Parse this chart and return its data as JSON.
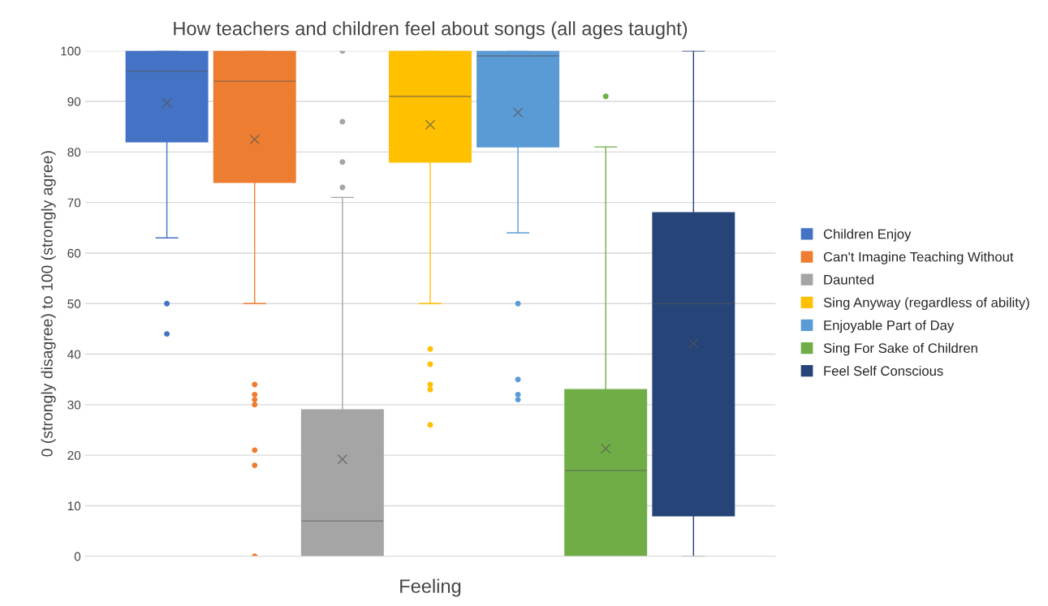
{
  "chart_data": {
    "type": "box",
    "title": "How teachers and children feel about songs (all ages taught)",
    "xlabel": "Feeling",
    "ylabel": "0 (strongly disagree) to 100 (strongly agree)",
    "categories": [
      null
    ],
    "series": [
      {
        "name": "Children Enjoy",
        "color": "#4472c4",
        "boxes": [
          {
            "low": 63,
            "q1": 82,
            "median": 96,
            "q3": 100,
            "high": 100,
            "mean": 89.7,
            "outliers": [
              50,
              44
            ]
          }
        ]
      },
      {
        "name": "Can't Imagine Teaching Without",
        "color": "#ed7d31",
        "boxes": [
          {
            "low": 50,
            "q1": 74,
            "median": 94,
            "q3": 100,
            "high": 100,
            "mean": 82.5,
            "outliers": [
              34,
              32,
              31,
              30,
              21,
              18,
              0
            ]
          }
        ]
      },
      {
        "name": "Daunted",
        "color": "#a5a5a5",
        "boxes": [
          {
            "low": 0,
            "q1": 0,
            "median": 7,
            "q3": 29,
            "high": 71,
            "mean": 19.2,
            "outliers": [
              73,
              78,
              86,
              100
            ]
          }
        ]
      },
      {
        "name": "Sing Anyway (regardless of ability)",
        "color": "#ffc000",
        "boxes": [
          {
            "low": 50,
            "q1": 78,
            "median": 91,
            "q3": 100,
            "high": 100,
            "mean": 85.4,
            "outliers": [
              41,
              38,
              34,
              33,
              26
            ]
          }
        ]
      },
      {
        "name": "Enjoyable Part of Day",
        "color": "#5b9bd5",
        "boxes": [
          {
            "low": 64,
            "q1": 81,
            "median": 99,
            "q3": 100,
            "high": 100,
            "mean": 87.8,
            "outliers": [
              50,
              35,
              32,
              31
            ]
          }
        ]
      },
      {
        "name": "Sing For Sake of Children",
        "color": "#70ad47",
        "boxes": [
          {
            "low": 0,
            "q1": 0,
            "median": 17,
            "q3": 33,
            "high": 81,
            "mean": 21.3,
            "outliers": [
              91
            ]
          }
        ]
      },
      {
        "name": "Feel Self Conscious",
        "color": "#264478",
        "boxes": [
          {
            "low": 0,
            "q1": 8,
            "median": 50,
            "q3": 68,
            "high": 100,
            "mean": 42.1
          }
        ]
      }
    ],
    "ylim": [
      0,
      100
    ],
    "yticks": [
      0,
      10,
      20,
      30,
      40,
      50,
      60,
      70,
      80,
      90,
      100
    ],
    "grid": "y",
    "legend": "right",
    "tick_labels": "y"
  }
}
